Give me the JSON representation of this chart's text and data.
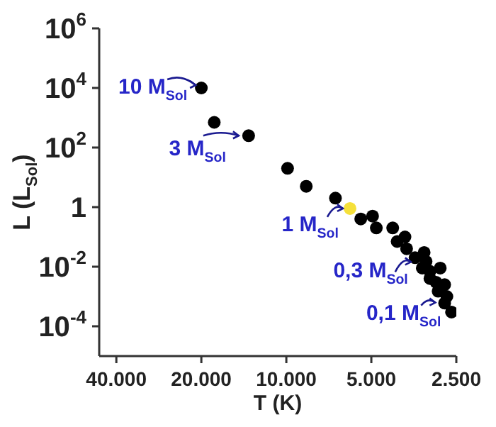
{
  "chart_data": {
    "type": "scatter",
    "xlabel": "T (K)",
    "ylabel": "L (L$_{Sol}$)",
    "log": "xy",
    "marker": "circle",
    "grid": false,
    "legend": false,
    "xlim": [
      46000,
      2500
    ],
    "xticks": [
      {
        "value": 40000,
        "label": "40.000"
      },
      {
        "value": 20000,
        "label": "20.000"
      },
      {
        "value": 10000,
        "label": "10.000"
      },
      {
        "value": 5000,
        "label": "5.000"
      },
      {
        "value": 2500,
        "label": "2.500"
      }
    ],
    "ylim": [
      1e-05,
      1000000
    ],
    "yticks": [
      {
        "value": 0.0001,
        "label": "10$^{-4}$"
      },
      {
        "value": 0.01,
        "label": "10$^{-2}$"
      },
      {
        "value": 1,
        "label": "1"
      },
      {
        "value": 100,
        "label": "10$^{2}$"
      },
      {
        "value": 10000,
        "label": "10$^{4}$"
      },
      {
        "value": 1000000,
        "label": "10$^{6}$"
      }
    ],
    "x": [
      20000,
      18000,
      13600,
      9900,
      8500,
      6700,
      5950,
      5450,
      4950,
      4800,
      4200,
      4050,
      3800,
      3750,
      3500,
      3250,
      3200,
      3300,
      3100,
      2850,
      3100,
      2950,
      2750,
      2900,
      2700,
      2750,
      2600
    ],
    "values": [
      10000,
      700,
      250,
      20,
      5,
      2,
      0.9,
      0.4,
      0.5,
      0.2,
      0.2,
      0.07,
      0.1,
      0.04,
      0.02,
      0.03,
      0.015,
      0.009,
      0.007,
      0.009,
      0.004,
      0.003,
      0.0025,
      0.0015,
      0.001,
      0.0006,
      0.0003
    ],
    "colors": [
      "#000000",
      "#000000",
      "#000000",
      "#000000",
      "#000000",
      "#000000",
      "#f5e03a",
      "#000000",
      "#000000",
      "#000000",
      "#000000",
      "#000000",
      "#000000",
      "#000000",
      "#000000",
      "#000000",
      "#000000",
      "#000000",
      "#000000",
      "#000000",
      "#000000",
      "#000000",
      "#000000",
      "#000000",
      "#000000",
      "#000000",
      "#000000"
    ],
    "annotations": [
      {
        "text": "10 M$_{Sol}$",
        "x": 20000,
        "y": 10000
      },
      {
        "text": "3 M$_{Sol}$",
        "x": 13600,
        "y": 250
      },
      {
        "text": "1 M$_{Sol}$",
        "x": 5950,
        "y": 0.9
      },
      {
        "text": "0,3 M$_{Sol}$",
        "x": 3500,
        "y": 0.02
      },
      {
        "text": "0,1 M$_{Sol}$",
        "x": 2900,
        "y": 0.0015
      }
    ]
  }
}
